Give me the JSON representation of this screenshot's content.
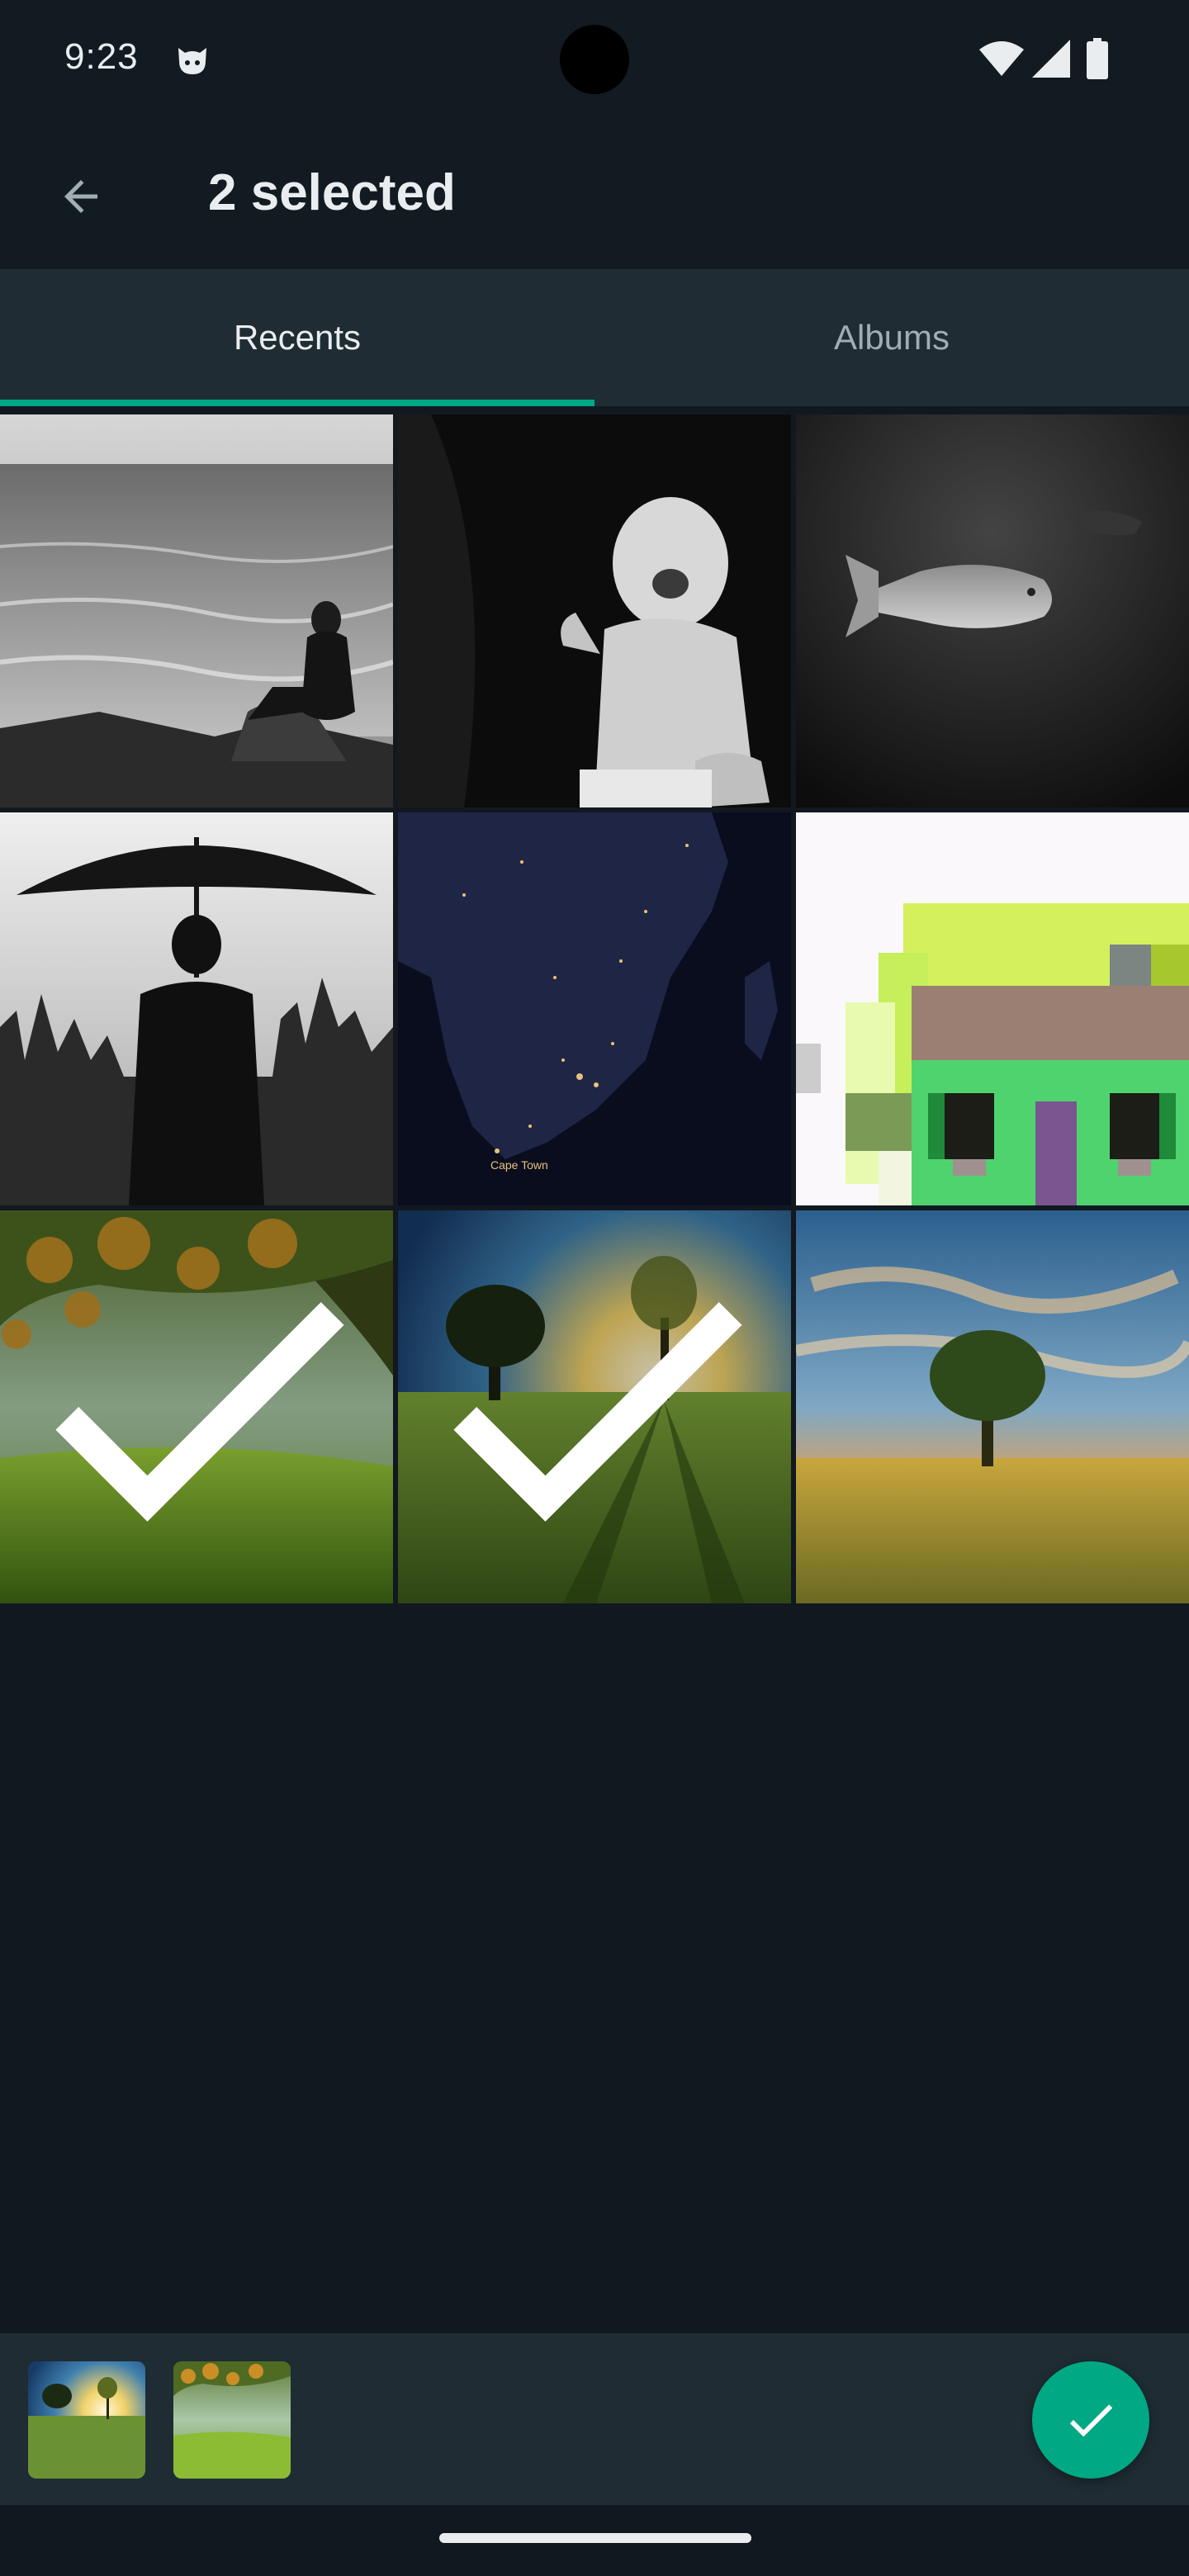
{
  "status_bar": {
    "time": "9:23",
    "icons": [
      "cat-face-icon",
      "wifi-icon",
      "cell-signal-icon",
      "battery-icon"
    ]
  },
  "app_bar": {
    "back_icon": "arrow-left-icon",
    "title": "2 selected"
  },
  "tabs": [
    {
      "label": "Recents",
      "active": true
    },
    {
      "label": "Albums",
      "active": false
    }
  ],
  "colors": {
    "background": "#111820",
    "surface": "#1f2c33",
    "accent": "#00a884",
    "text_primary": "#e9edef",
    "text_secondary": "#a2acb3"
  },
  "gallery": {
    "items": [
      {
        "description": "person-sitting-by-sea-bw",
        "selected": false
      },
      {
        "description": "crying-baby-bw",
        "selected": false
      },
      {
        "description": "fish-underwater-bw",
        "selected": false
      },
      {
        "description": "man-with-umbrella-city-bw",
        "selected": false
      },
      {
        "description": "africa-night-map",
        "selected": false,
        "map_labels": [
          "Cape Town"
        ]
      },
      {
        "description": "pixel-art-house",
        "selected": false
      },
      {
        "description": "green-meadow-tree-branches",
        "selected": true
      },
      {
        "description": "trees-sunset-field",
        "selected": true
      },
      {
        "description": "lone-tree-sunset-field",
        "selected": false
      }
    ]
  },
  "tray": {
    "thumbnails": [
      "trees-sunset-field",
      "green-meadow-tree-branches"
    ],
    "confirm_icon": "check-icon"
  }
}
